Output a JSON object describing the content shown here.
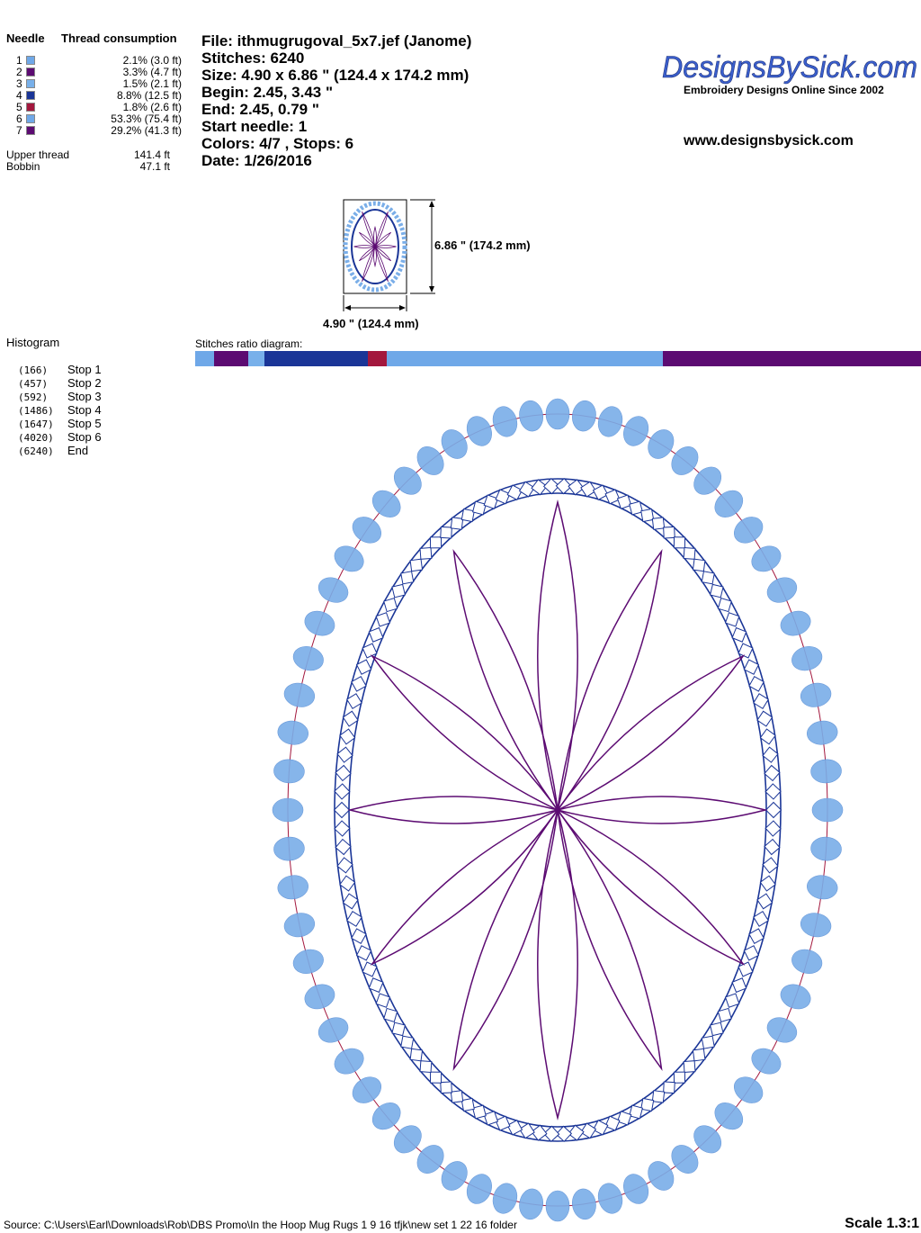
{
  "needle_table": {
    "header_needle": "Needle",
    "header_thread": "Thread consumption",
    "needles": [
      {
        "num": "1",
        "color": "#6fa8e8",
        "usage": "2.1% (3.0 ft)"
      },
      {
        "num": "2",
        "color": "#5c0b72",
        "usage": "3.3% (4.7 ft)"
      },
      {
        "num": "3",
        "color": "#78b0ea",
        "usage": "1.5% (2.1 ft)"
      },
      {
        "num": "4",
        "color": "#1a3597",
        "usage": "8.8% (12.5 ft)"
      },
      {
        "num": "5",
        "color": "#a3173d",
        "usage": "1.8% (2.6 ft)"
      },
      {
        "num": "6",
        "color": "#6fa8e8",
        "usage": "53.3% (75.4 ft)"
      },
      {
        "num": "7",
        "color": "#5c0b72",
        "usage": "29.2% (41.3 ft)"
      }
    ],
    "upper_thread_label": "Upper thread",
    "upper_thread_value": "141.4 ft",
    "bobbin_label": "Bobbin",
    "bobbin_value": "47.1 ft"
  },
  "file_info": {
    "file": "File: ithmugrugoval_5x7.jef  (Janome)",
    "stitches": "Stitches: 6240",
    "size": "Size: 4.90 x 6.86 \" (124.4 x 174.2 mm)",
    "begin": "Begin: 2.45, 3.43 \"",
    "end": "End: 2.45, 0.79 \"",
    "start_needle": "Start needle: 1",
    "colors": "Colors: 4/7 , Stops: 6",
    "date": "Date: 1/26/2016"
  },
  "brand": {
    "logo_text": "DesignsBySick.com",
    "tagline": "Embroidery Designs Online Since 2002",
    "url": "www.designsbysick.com",
    "logo_color": "#3a5fcd"
  },
  "thumbnail": {
    "height_label": "6.86 \" (174.2 mm)",
    "width_label": "4.90 \" (124.4 mm)"
  },
  "histogram": {
    "title": "Histogram",
    "rows": [
      {
        "count": "(166)",
        "label": "Stop 1"
      },
      {
        "count": "(457)",
        "label": "Stop 2"
      },
      {
        "count": "(592)",
        "label": "Stop 3"
      },
      {
        "count": "(1486)",
        "label": "Stop 4"
      },
      {
        "count": "(1647)",
        "label": "Stop 5"
      },
      {
        "count": "(4020)",
        "label": "Stop 6"
      },
      {
        "count": "(6240)",
        "label": "End"
      }
    ]
  },
  "ratio_diagram": {
    "title": "Stitches ratio diagram:",
    "total": 6240,
    "segments": [
      {
        "stitches": 166,
        "color": "#6fa8e8"
      },
      {
        "stitches": 291,
        "color": "#5c0b72"
      },
      {
        "stitches": 135,
        "color": "#78b0ea"
      },
      {
        "stitches": 894,
        "color": "#1a3597"
      },
      {
        "stitches": 161,
        "color": "#a3173d"
      },
      {
        "stitches": 2373,
        "color": "#6fa8e8"
      },
      {
        "stitches": 2220,
        "color": "#5c0b72"
      }
    ]
  },
  "design_colors": {
    "dots": "#7aaee8",
    "guide": "#a3173d",
    "border": "#1a3597",
    "flower": "#5c0b72"
  },
  "footer": {
    "source": "Source: C:\\Users\\Earl\\Downloads\\Rob\\DBS Promo\\In the Hoop Mug Rugs 1 9 16 tfjk\\new set 1 22 16 folder",
    "scale": "Scale 1.3:1"
  }
}
